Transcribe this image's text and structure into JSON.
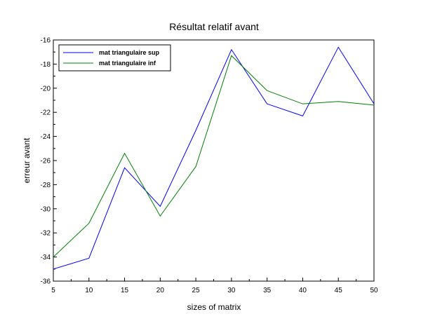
{
  "chart_data": {
    "type": "line",
    "title": "Résultat relatif avant",
    "xlabel": "sizes of matrix",
    "ylabel": "erreur avant",
    "x": [
      5,
      10,
      15,
      20,
      25,
      30,
      35,
      40,
      45,
      50
    ],
    "xlim": [
      5,
      50
    ],
    "ylim": [
      -36,
      -16
    ],
    "xticks": [
      5,
      10,
      15,
      20,
      25,
      30,
      35,
      40,
      45,
      50
    ],
    "yticks": [
      -36,
      -34,
      -32,
      -30,
      -28,
      -26,
      -24,
      -22,
      -20,
      -18,
      -16
    ],
    "xtick_labels": [
      "5",
      "10",
      "15",
      "20",
      "25",
      "30",
      "35",
      "40",
      "45",
      "50"
    ],
    "ytick_labels": [
      "-36",
      "-34",
      "-32",
      "-30",
      "-28",
      "-26",
      "-24",
      "-22",
      "-20",
      "-18",
      "-16"
    ],
    "grid": false,
    "legend_position": "top-left",
    "series": [
      {
        "name": "mat triangulaire sup",
        "color": "#0000ff",
        "values": [
          -35.0,
          -34.1,
          -26.6,
          -29.8,
          -23.5,
          -16.8,
          -21.3,
          -22.3,
          -16.6,
          -21.3
        ]
      },
      {
        "name": "mat triangulaire inf",
        "color": "#008000",
        "values": [
          -34.0,
          -31.2,
          -25.4,
          -30.6,
          -26.5,
          -17.3,
          -20.2,
          -21.3,
          -21.1,
          -21.4
        ]
      }
    ]
  }
}
